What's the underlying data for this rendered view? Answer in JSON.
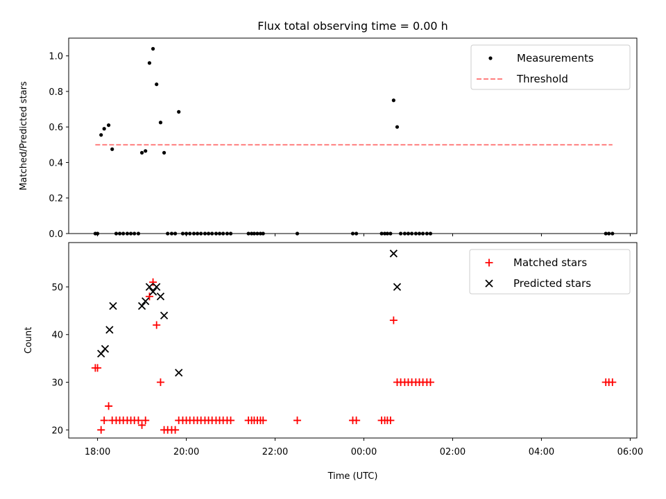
{
  "chart_data": [
    {
      "type": "scatter",
      "title": "Flux total observing time = 0.00 h",
      "ylabel": "Matched/Predicted stars",
      "ylim": [
        0,
        1.1
      ],
      "yticks": [
        0.0,
        0.2,
        0.4,
        0.6,
        0.8,
        1.0
      ],
      "ytick_labels": [
        "0.0",
        "0.2",
        "0.4",
        "0.6",
        "0.8",
        "1.0"
      ],
      "x_unit": "hours since 18:00 UTC",
      "xlim": [
        -0.65,
        12.15
      ],
      "legend_position": "top-right",
      "series": [
        {
          "name": "Measurements",
          "kind": "scatter",
          "color": "#000000",
          "marker": "dot",
          "points": [
            [
              -0.05,
              0.0
            ],
            [
              0.0,
              0.0
            ],
            [
              0.08,
              0.555
            ],
            [
              0.15,
              0.59
            ],
            [
              0.25,
              0.61
            ],
            [
              0.33,
              0.475
            ],
            [
              0.42,
              0.0
            ],
            [
              0.5,
              0.0
            ],
            [
              0.58,
              0.0
            ],
            [
              0.67,
              0.0
            ],
            [
              0.75,
              0.0
            ],
            [
              0.83,
              0.0
            ],
            [
              0.92,
              0.0
            ],
            [
              1.0,
              0.455
            ],
            [
              1.08,
              0.465
            ],
            [
              1.17,
              0.96
            ],
            [
              1.25,
              1.04
            ],
            [
              1.33,
              0.84
            ],
            [
              1.42,
              0.625
            ],
            [
              1.5,
              0.455
            ],
            [
              1.58,
              0.0
            ],
            [
              1.67,
              0.0
            ],
            [
              1.75,
              0.0
            ],
            [
              1.83,
              0.685
            ],
            [
              1.92,
              0.0
            ],
            [
              2.0,
              0.0
            ],
            [
              2.08,
              0.0
            ],
            [
              2.17,
              0.0
            ],
            [
              2.25,
              0.0
            ],
            [
              2.33,
              0.0
            ],
            [
              2.42,
              0.0
            ],
            [
              2.5,
              0.0
            ],
            [
              2.58,
              0.0
            ],
            [
              2.67,
              0.0
            ],
            [
              2.75,
              0.0
            ],
            [
              2.83,
              0.0
            ],
            [
              2.92,
              0.0
            ],
            [
              3.0,
              0.0
            ],
            [
              3.4,
              0.0
            ],
            [
              3.47,
              0.0
            ],
            [
              3.53,
              0.0
            ],
            [
              3.6,
              0.0
            ],
            [
              3.67,
              0.0
            ],
            [
              3.73,
              0.0
            ],
            [
              4.5,
              0.0
            ],
            [
              5.75,
              0.0
            ],
            [
              5.83,
              0.0
            ],
            [
              6.4,
              0.0
            ],
            [
              6.47,
              0.0
            ],
            [
              6.53,
              0.0
            ],
            [
              6.6,
              0.0
            ],
            [
              6.67,
              0.75
            ],
            [
              6.75,
              0.6
            ],
            [
              6.83,
              0.0
            ],
            [
              6.92,
              0.0
            ],
            [
              7.0,
              0.0
            ],
            [
              7.08,
              0.0
            ],
            [
              7.17,
              0.0
            ],
            [
              7.25,
              0.0
            ],
            [
              7.33,
              0.0
            ],
            [
              7.42,
              0.0
            ],
            [
              7.5,
              0.0
            ],
            [
              11.45,
              0.0
            ],
            [
              11.52,
              0.0
            ],
            [
              11.6,
              0.0
            ]
          ]
        },
        {
          "name": "Threshold",
          "kind": "line",
          "color": "#ff7f7f",
          "dash": true,
          "points": [
            [
              -0.05,
              0.5
            ],
            [
              11.6,
              0.5
            ]
          ]
        }
      ]
    },
    {
      "type": "scatter",
      "xlabel": "Time (UTC)",
      "ylabel": "Count",
      "ylim": [
        18.3,
        59.3
      ],
      "yticks": [
        20,
        30,
        40,
        50
      ],
      "ytick_labels": [
        "20",
        "30",
        "40",
        "50"
      ],
      "x_unit": "hours since 18:00 UTC",
      "xlim": [
        -0.65,
        12.15
      ],
      "xticks": [
        0,
        2,
        4,
        6,
        8,
        10,
        12
      ],
      "xtick_labels": [
        "18:00",
        "20:00",
        "22:00",
        "00:00",
        "02:00",
        "04:00",
        "06:00"
      ],
      "legend_position": "top-right",
      "series": [
        {
          "name": "Matched stars",
          "kind": "scatter",
          "color": "#ff0000",
          "marker": "plus",
          "points": [
            [
              -0.05,
              33
            ],
            [
              0.0,
              33
            ],
            [
              0.08,
              20
            ],
            [
              0.15,
              22
            ],
            [
              0.25,
              25
            ],
            [
              0.33,
              22
            ],
            [
              0.42,
              22
            ],
            [
              0.5,
              22
            ],
            [
              0.58,
              22
            ],
            [
              0.67,
              22
            ],
            [
              0.75,
              22
            ],
            [
              0.83,
              22
            ],
            [
              0.92,
              22
            ],
            [
              1.0,
              21
            ],
            [
              1.08,
              22
            ],
            [
              1.17,
              48
            ],
            [
              1.25,
              51
            ],
            [
              1.33,
              42
            ],
            [
              1.42,
              30
            ],
            [
              1.5,
              20
            ],
            [
              1.58,
              20
            ],
            [
              1.67,
              20
            ],
            [
              1.75,
              20
            ],
            [
              1.83,
              22
            ],
            [
              1.92,
              22
            ],
            [
              2.0,
              22
            ],
            [
              2.08,
              22
            ],
            [
              2.17,
              22
            ],
            [
              2.25,
              22
            ],
            [
              2.33,
              22
            ],
            [
              2.42,
              22
            ],
            [
              2.5,
              22
            ],
            [
              2.58,
              22
            ],
            [
              2.67,
              22
            ],
            [
              2.75,
              22
            ],
            [
              2.83,
              22
            ],
            [
              2.92,
              22
            ],
            [
              3.0,
              22
            ],
            [
              3.4,
              22
            ],
            [
              3.47,
              22
            ],
            [
              3.53,
              22
            ],
            [
              3.6,
              22
            ],
            [
              3.67,
              22
            ],
            [
              3.73,
              22
            ],
            [
              4.5,
              22
            ],
            [
              5.75,
              22
            ],
            [
              5.83,
              22
            ],
            [
              6.4,
              22
            ],
            [
              6.47,
              22
            ],
            [
              6.53,
              22
            ],
            [
              6.6,
              22
            ],
            [
              6.67,
              43
            ],
            [
              6.75,
              30
            ],
            [
              6.83,
              30
            ],
            [
              6.92,
              30
            ],
            [
              7.0,
              30
            ],
            [
              7.08,
              30
            ],
            [
              7.17,
              30
            ],
            [
              7.25,
              30
            ],
            [
              7.33,
              30
            ],
            [
              7.42,
              30
            ],
            [
              7.5,
              30
            ],
            [
              11.45,
              30
            ],
            [
              11.52,
              30
            ],
            [
              11.6,
              30
            ]
          ]
        },
        {
          "name": "Predicted stars",
          "kind": "scatter",
          "color": "#000000",
          "marker": "x",
          "points": [
            [
              0.08,
              36
            ],
            [
              0.17,
              37
            ],
            [
              0.27,
              41
            ],
            [
              0.35,
              46
            ],
            [
              1.0,
              46
            ],
            [
              1.08,
              47
            ],
            [
              1.17,
              50
            ],
            [
              1.25,
              49
            ],
            [
              1.33,
              50
            ],
            [
              1.42,
              48
            ],
            [
              1.5,
              44
            ],
            [
              1.83,
              32
            ],
            [
              6.67,
              57
            ],
            [
              6.75,
              50
            ]
          ]
        }
      ]
    }
  ]
}
